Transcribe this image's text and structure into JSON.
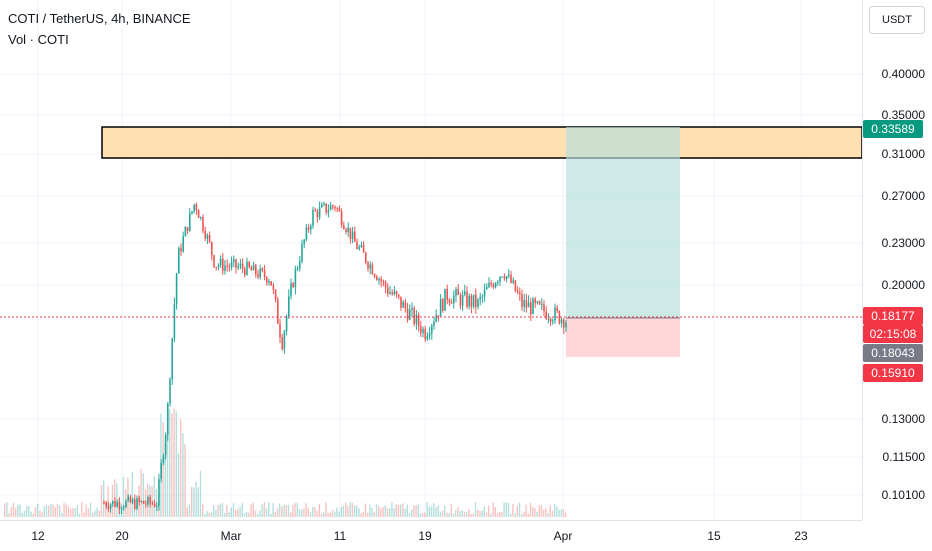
{
  "header": {
    "title": "COTI / TetherUS, 4h, BINANCE",
    "volume_label": "Vol · COTI"
  },
  "currency_selector": "USDT",
  "price_axis": {
    "ticks": [
      "0.40000",
      "0.35000",
      "0.31000",
      "0.27000",
      "0.23000",
      "0.20000",
      "0.13000",
      "0.11500",
      "0.10100"
    ]
  },
  "time_axis": {
    "ticks": [
      "12",
      "20",
      "Mar",
      "11",
      "19",
      "Apr",
      "15",
      "23"
    ]
  },
  "badges": {
    "target": {
      "value": "0.33589",
      "color": "#089981"
    },
    "last_price": {
      "value": "0.18177",
      "color": "#f23645"
    },
    "countdown": {
      "value": "02:15:08",
      "color": "#f23645"
    },
    "entry": {
      "value": "0.18043",
      "color": "#787b86"
    },
    "stop": {
      "value": "0.15910",
      "color": "#f23645"
    }
  },
  "colors": {
    "up": "#26a69a",
    "down": "#ef5350",
    "zone_fill": "#ffe0b2",
    "profit_fill": "#b2dfdb",
    "loss_fill": "#ffcdd2"
  },
  "chart_data": {
    "type": "candlestick",
    "symbol": "COTI / TetherUS",
    "interval": "4h",
    "exchange": "BINANCE",
    "last_price": 0.18177,
    "resistance_zone": [
      0.305,
      0.335
    ],
    "position": {
      "entry": 0.18043,
      "target": 0.33589,
      "stop": 0.1591
    },
    "price_path": [
      {
        "date": "Feb 18",
        "price": 0.098
      },
      {
        "date": "Feb 22",
        "price": 0.098
      },
      {
        "date": "Feb 23",
        "price": 0.13
      },
      {
        "date": "Feb 24",
        "price": 0.22
      },
      {
        "date": "Feb 25",
        "price": 0.265
      },
      {
        "date": "Feb 27",
        "price": 0.215
      },
      {
        "date": "Mar 2",
        "price": 0.212
      },
      {
        "date": "Mar 5",
        "price": 0.205
      },
      {
        "date": "Mar 6",
        "price": 0.17
      },
      {
        "date": "Mar 7",
        "price": 0.2
      },
      {
        "date": "Mar 9",
        "price": 0.255
      },
      {
        "date": "Mar 11",
        "price": 0.262
      },
      {
        "date": "Mar 13",
        "price": 0.23
      },
      {
        "date": "Mar 16",
        "price": 0.2
      },
      {
        "date": "Mar 18",
        "price": 0.185
      },
      {
        "date": "Mar 19",
        "price": 0.175
      },
      {
        "date": "Mar 21",
        "price": 0.195
      },
      {
        "date": "Mar 24",
        "price": 0.19
      },
      {
        "date": "Mar 26",
        "price": 0.21
      },
      {
        "date": "Mar 28",
        "price": 0.19
      },
      {
        "date": "Mar 31",
        "price": 0.185
      },
      {
        "date": "Apr 1",
        "price": 0.18177
      }
    ]
  }
}
